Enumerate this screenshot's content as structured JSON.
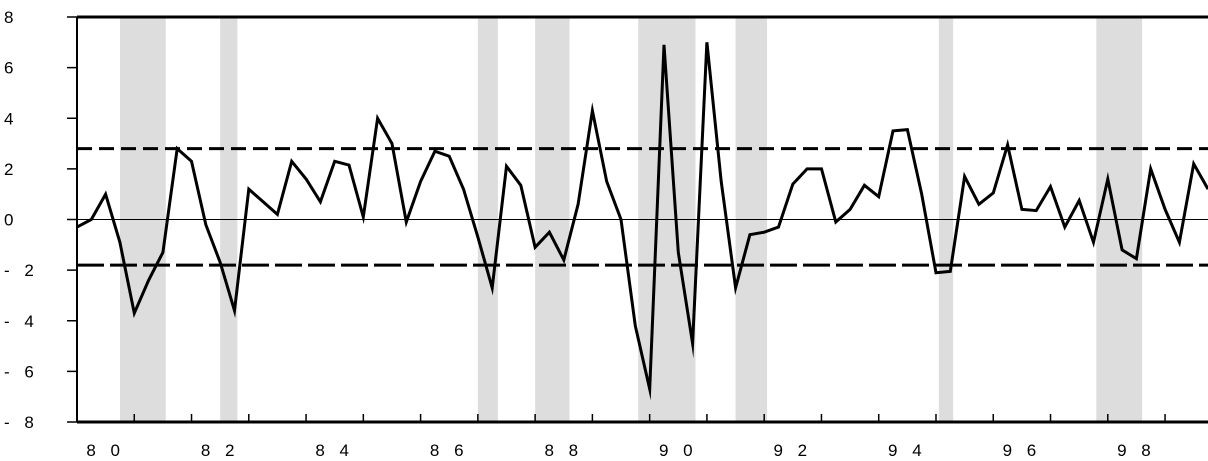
{
  "colors": {
    "shading": "#dddddd",
    "line": "#000000",
    "band": "#000000"
  },
  "chart_data": {
    "type": "line",
    "title": "",
    "xlabel": "",
    "ylabel": "",
    "xlim": [
      1980.0,
      1999.75
    ],
    "ylim": [
      -8,
      8
    ],
    "y_ticks": [
      8,
      6,
      4,
      2,
      0,
      -2,
      -4,
      -6,
      -8
    ],
    "y_tick_labels": [
      "8",
      "6",
      "4",
      "2",
      "0",
      "- 2",
      "- 4",
      "- 6",
      "- 8"
    ],
    "x_tick_labels": [
      {
        "year": 1980,
        "label": "8 0"
      },
      {
        "year": 1982,
        "label": "8 2"
      },
      {
        "year": 1984,
        "label": "8 4"
      },
      {
        "year": 1986,
        "label": "8 6"
      },
      {
        "year": 1988,
        "label": "8 8"
      },
      {
        "year": 1990,
        "label": "9 0"
      },
      {
        "year": 1992,
        "label": "9 2"
      },
      {
        "year": 1994,
        "label": "9 4"
      },
      {
        "year": 1996,
        "label": "9 6"
      },
      {
        "year": 1998,
        "label": "9 8"
      }
    ],
    "shaded_periods": [
      [
        1980.75,
        1981.55
      ],
      [
        1982.5,
        1982.8
      ],
      [
        1987.0,
        1987.35
      ],
      [
        1988.0,
        1988.6
      ],
      [
        1989.8,
        1990.8
      ],
      [
        1991.5,
        1992.05
      ],
      [
        1995.05,
        1995.3
      ],
      [
        1997.8,
        1998.6
      ]
    ],
    "reference_lines": [
      {
        "style": "short-dash",
        "value": 2.8
      },
      {
        "style": "long-dash",
        "value": -1.8
      },
      {
        "style": "solid-thin",
        "value": 0
      }
    ],
    "series": [
      {
        "x": [
          1980.0,
          1980.25,
          1980.5,
          1980.75,
          1981.0,
          1981.25,
          1981.5,
          1981.75,
          1982.0,
          1982.25,
          1982.5,
          1982.75,
          1983.0,
          1983.25,
          1983.5,
          1983.75,
          1984.0,
          1984.25,
          1984.5,
          1984.75,
          1985.0,
          1985.25,
          1985.5,
          1985.75,
          1986.0,
          1986.25,
          1986.5,
          1986.75,
          1987.0,
          1987.25,
          1987.5,
          1987.75,
          1988.0,
          1988.25,
          1988.5,
          1988.75,
          1989.0,
          1989.25,
          1989.5,
          1989.75,
          1990.0,
          1990.25,
          1990.5,
          1990.75,
          1991.0,
          1991.25,
          1991.5,
          1991.75,
          1992.0,
          1992.25,
          1992.5,
          1992.75,
          1993.0,
          1993.25,
          1993.5,
          1993.75,
          1994.0,
          1994.25,
          1994.5,
          1994.75,
          1995.0,
          1995.25,
          1995.5,
          1995.75,
          1996.0,
          1996.25,
          1996.5,
          1996.75,
          1997.0,
          1997.25,
          1997.5,
          1997.75,
          1998.0,
          1998.25,
          1998.5,
          1998.75,
          1999.0,
          1999.25,
          1999.5,
          1999.75
        ],
        "y": [
          -0.3,
          0.0,
          1.0,
          -0.9,
          -3.7,
          -2.4,
          -1.3,
          2.8,
          2.3,
          -0.2,
          -1.7,
          -3.6,
          1.2,
          0.7,
          0.2,
          2.3,
          1.6,
          0.7,
          2.3,
          2.15,
          0.1,
          4.0,
          3.0,
          -0.1,
          1.5,
          2.7,
          2.5,
          1.2,
          -0.7,
          -2.7,
          2.1,
          1.35,
          -1.1,
          -0.5,
          -1.6,
          0.6,
          4.3,
          1.5,
          0.0,
          -4.2,
          -6.7,
          6.9,
          -1.3,
          -4.9,
          7.0,
          1.5,
          -2.7,
          -0.6,
          -0.5,
          -0.3,
          1.4,
          2.0,
          2.0,
          -0.1,
          0.4,
          1.35,
          0.9,
          3.5,
          3.55,
          1.0,
          -2.1,
          -2.05,
          1.7,
          0.6,
          1.05,
          2.95,
          0.4,
          0.35,
          1.3,
          -0.3,
          0.75,
          -0.9,
          1.6,
          -1.2,
          -1.55,
          2.0,
          0.4,
          -0.9,
          2.2,
          1.2
        ]
      }
    ]
  }
}
